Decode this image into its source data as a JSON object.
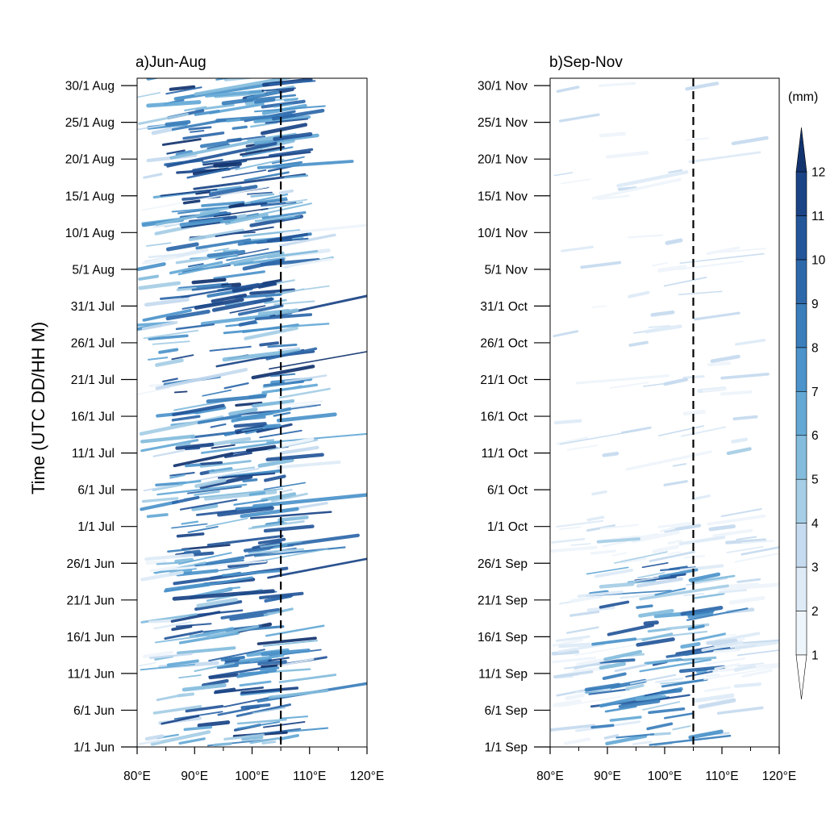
{
  "chart_data": [
    {
      "type": "heatmap",
      "panel": "a",
      "title": "a)Jun-Aug",
      "xlabel": "",
      "ylabel": "Time (UTC DD/HH M)",
      "x_ticks": [
        "80°E",
        "90°E",
        "100°E",
        "110°E",
        "120°E"
      ],
      "x_values": [
        80,
        90,
        100,
        110,
        120
      ],
      "xlim": [
        80,
        120
      ],
      "y_ticks": [
        "1/1 Jun",
        "6/1 Jun",
        "11/1 Jun",
        "16/1 Jun",
        "21/1 Jun",
        "26/1 Jun",
        "1/1 Jul",
        "6/1 Jul",
        "11/1 Jul",
        "16/1 Jul",
        "21/1 Jul",
        "26/1 Jul",
        "31/1 Jul",
        "5/1 Aug",
        "10/1 Aug",
        "15/1 Aug",
        "20/1 Aug",
        "25/1 Aug",
        "30/1 Aug"
      ],
      "y_day_index": [
        0,
        5,
        10,
        15,
        20,
        25,
        30,
        35,
        40,
        45,
        50,
        55,
        60,
        65,
        70,
        75,
        80,
        85,
        90
      ],
      "ylim_days": [
        0,
        91
      ],
      "reference_line_lon": 105,
      "description": "Hovmoller diagram of precipitation; dense heavy rainfall (>12 mm) concentrated between 85°E and 105°E with eastward-propagating streaks extending to 120°E"
    },
    {
      "type": "heatmap",
      "panel": "b",
      "title": "b)Sep-Nov",
      "xlabel": "",
      "ylabel": "",
      "x_ticks": [
        "80°E",
        "90°E",
        "100°E",
        "110°E",
        "120°E"
      ],
      "x_values": [
        80,
        90,
        100,
        110,
        120
      ],
      "xlim": [
        80,
        120
      ],
      "y_ticks": [
        "1/1 Sep",
        "6/1 Sep",
        "11/1 Sep",
        "16/1 Sep",
        "21/1 Sep",
        "26/1 Sep",
        "1/1 Oct",
        "6/1 Oct",
        "11/1 Oct",
        "16/1 Oct",
        "21/1 Oct",
        "26/1 Oct",
        "31/1 Oct",
        "5/1 Nov",
        "10/1 Nov",
        "15/1 Nov",
        "20/1 Nov",
        "25/1 Nov",
        "30/1 Nov"
      ],
      "y_day_index": [
        0,
        5,
        10,
        15,
        20,
        25,
        30,
        35,
        40,
        45,
        50,
        55,
        60,
        65,
        70,
        75,
        80,
        85,
        90
      ],
      "ylim_days": [
        0,
        91
      ],
      "reference_line_lon": 105,
      "description": "Hovmoller diagram of precipitation; weaker rainfall concentrated in early-mid September between 85°E and 105°E, sparse light streaks later in the season"
    }
  ],
  "colorbar": {
    "units": "(mm)",
    "levels": [
      "1",
      "2",
      "3",
      "4",
      "5",
      "6",
      "7",
      "8",
      "9",
      "10",
      "11",
      "12"
    ],
    "colors": [
      "#ffffff",
      "#eef5fb",
      "#deebf7",
      "#c6dbef",
      "#a6cee6",
      "#84bcdd",
      "#64a9d6",
      "#4b93ca",
      "#3a7ebb",
      "#2d68aa",
      "#24569a",
      "#1a4486",
      "#12336e"
    ],
    "below_color": "#ffffff",
    "above_color": "#12336e"
  }
}
